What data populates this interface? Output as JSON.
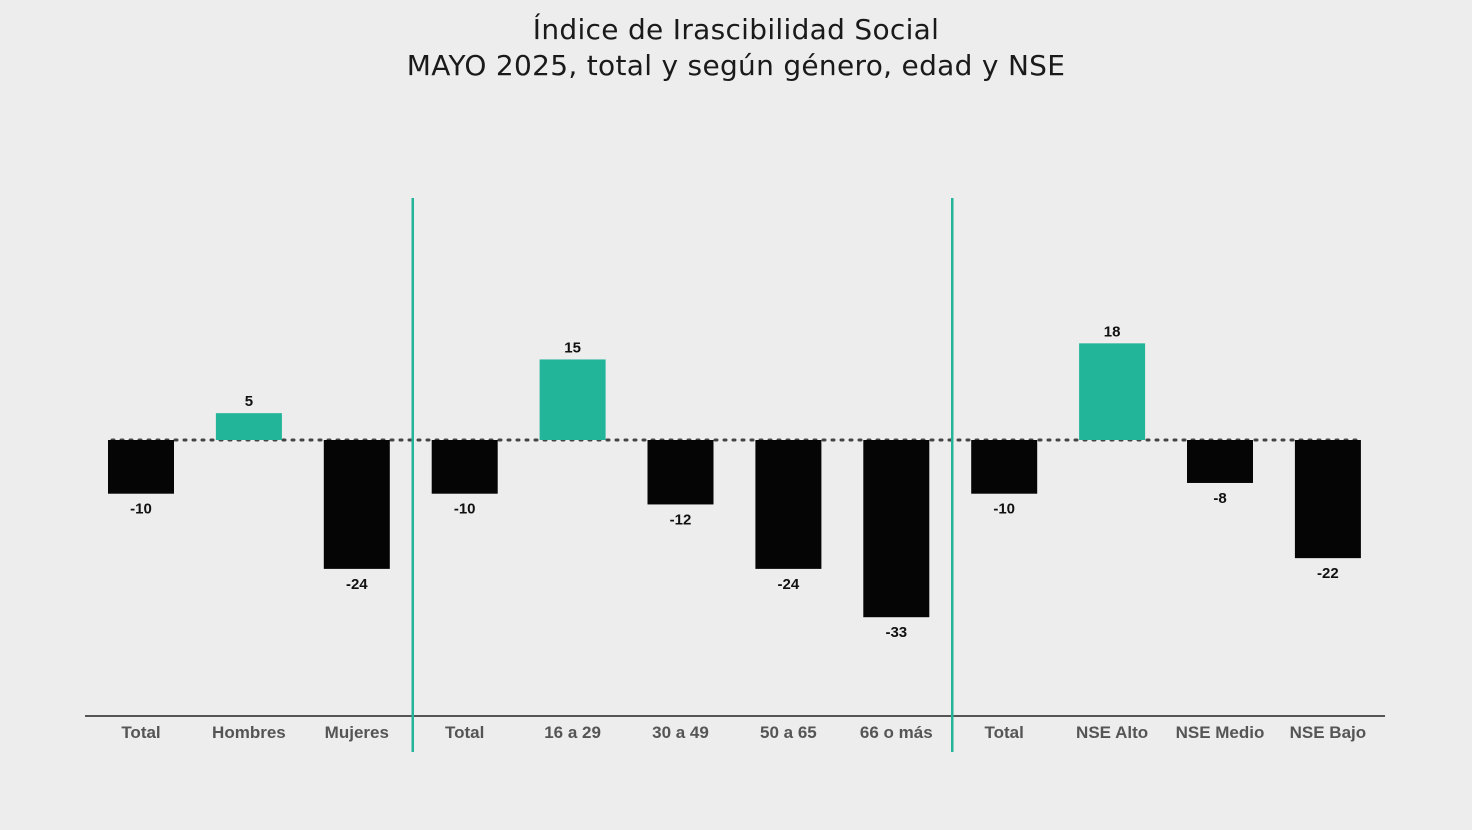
{
  "chart_data": {
    "type": "bar",
    "title": "Índice de Irascibilidad Social",
    "subtitle": "MAYO 2025, total y según género, edad y NSE",
    "categories": [
      "Total",
      "Hombres",
      "Mujeres",
      "Total",
      "16 a 29",
      "30 a 49",
      "50 a 65",
      "66 o más",
      "Total",
      "NSE Alto",
      "NSE Medio",
      "NSE Bajo"
    ],
    "values": [
      -10,
      5,
      -24,
      -10,
      15,
      -12,
      -24,
      -33,
      -10,
      18,
      -8,
      -22
    ],
    "value_labels": [
      "-10",
      "5",
      "-24",
      "-10",
      "15",
      "-12",
      "-24",
      "-33",
      "-10",
      "18",
      "-8",
      "-22"
    ],
    "groups": [
      {
        "start": 0,
        "end": 2
      },
      {
        "start": 3,
        "end": 7
      },
      {
        "start": 8,
        "end": 11
      }
    ],
    "ylim": [
      -50,
      50
    ],
    "zero_line": "dotted",
    "colors": {
      "positive": "#22b59a",
      "negative": "#050505",
      "separator": "#22b59a",
      "axis": "#555555",
      "zero_line": "#444444"
    }
  }
}
